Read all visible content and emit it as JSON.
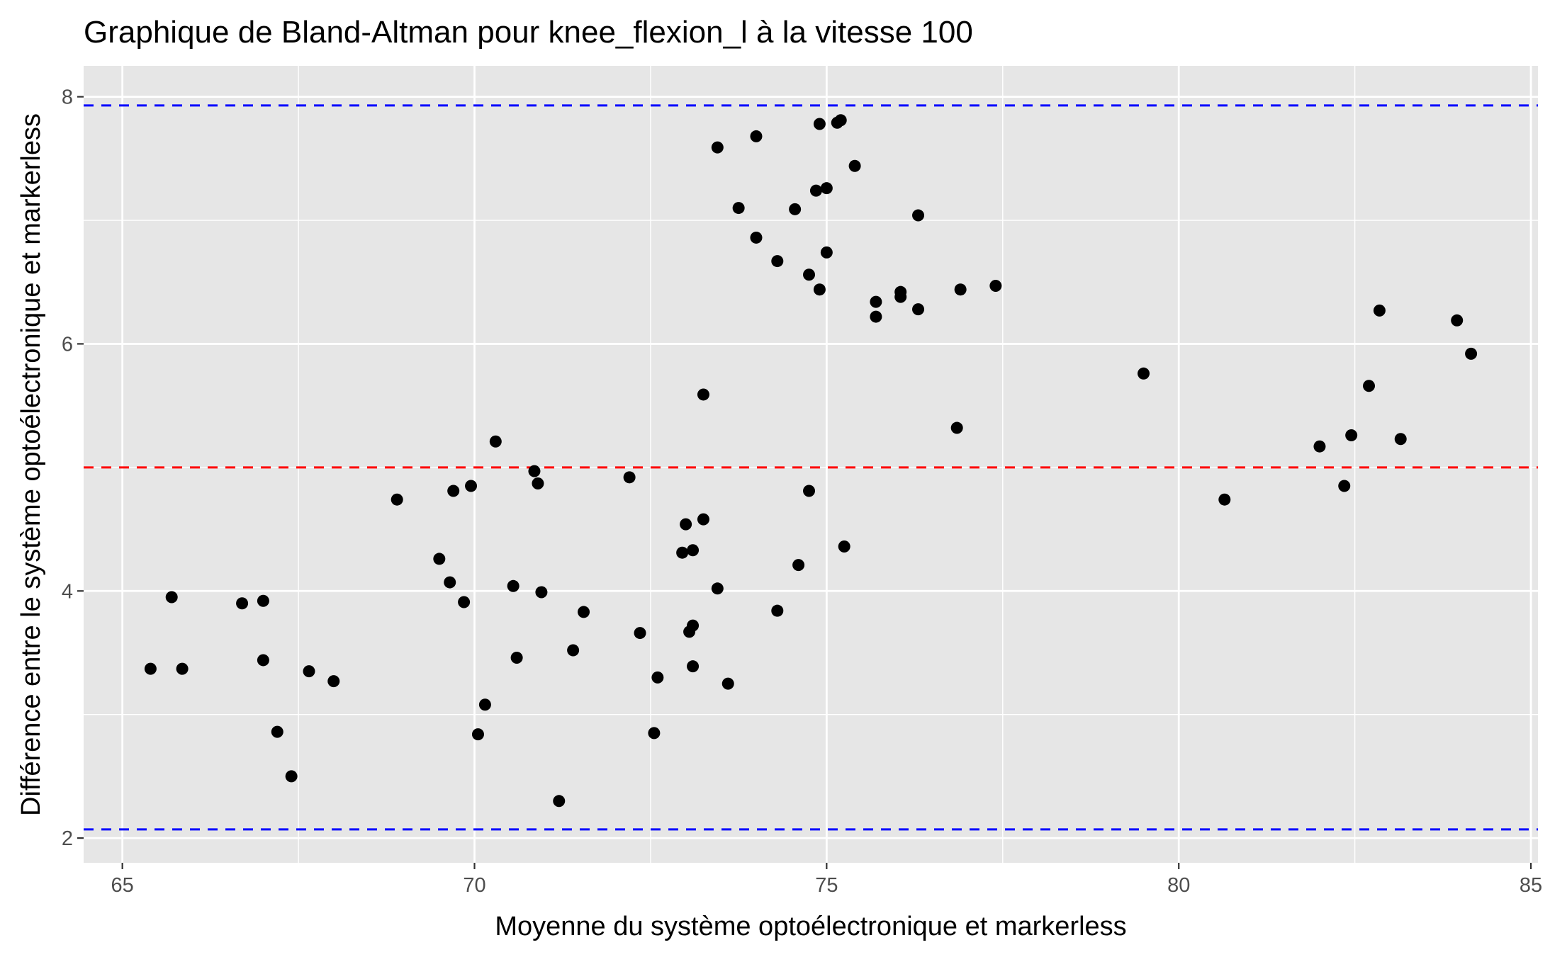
{
  "chart_data": {
    "type": "scatter",
    "title": "Graphique de Bland-Altman pour knee_flexion_l à la vitesse 100",
    "xlabel": "Moyenne du système optoélectronique et markerless",
    "ylabel": "Différence entre le système optoélectronique et markerless",
    "xlim": [
      64.45,
      85.1
    ],
    "ylim": [
      1.8,
      8.25
    ],
    "xticks": [
      65,
      70,
      75,
      80,
      85
    ],
    "yticks": [
      2,
      4,
      6,
      8
    ],
    "grid": true,
    "reference_lines": [
      {
        "kind": "mean-difference",
        "y": 5.0,
        "color": "#ff0000",
        "style": "dashed"
      },
      {
        "kind": "upper-limit",
        "y": 7.93,
        "color": "#0000ff",
        "style": "dashed"
      },
      {
        "kind": "lower-limit",
        "y": 2.07,
        "color": "#0000ff",
        "style": "dashed"
      }
    ],
    "point_color": "#000000",
    "points": [
      {
        "x": 65.4,
        "y": 3.37
      },
      {
        "x": 65.7,
        "y": 3.95
      },
      {
        "x": 65.85,
        "y": 3.37
      },
      {
        "x": 66.7,
        "y": 3.9
      },
      {
        "x": 67.0,
        "y": 3.92
      },
      {
        "x": 67.0,
        "y": 3.44
      },
      {
        "x": 67.2,
        "y": 2.86
      },
      {
        "x": 67.4,
        "y": 2.5
      },
      {
        "x": 67.65,
        "y": 3.35
      },
      {
        "x": 68.0,
        "y": 3.27
      },
      {
        "x": 68.9,
        "y": 4.74
      },
      {
        "x": 69.5,
        "y": 4.26
      },
      {
        "x": 69.65,
        "y": 4.07
      },
      {
        "x": 69.7,
        "y": 4.81
      },
      {
        "x": 69.85,
        "y": 3.91
      },
      {
        "x": 69.95,
        "y": 4.85
      },
      {
        "x": 70.05,
        "y": 2.84
      },
      {
        "x": 70.15,
        "y": 3.08
      },
      {
        "x": 70.3,
        "y": 5.21
      },
      {
        "x": 70.55,
        "y": 4.04
      },
      {
        "x": 70.6,
        "y": 3.46
      },
      {
        "x": 70.85,
        "y": 4.97
      },
      {
        "x": 70.9,
        "y": 4.87
      },
      {
        "x": 70.95,
        "y": 3.99
      },
      {
        "x": 71.2,
        "y": 2.3
      },
      {
        "x": 71.4,
        "y": 3.52
      },
      {
        "x": 71.55,
        "y": 3.83
      },
      {
        "x": 72.2,
        "y": 4.92
      },
      {
        "x": 72.35,
        "y": 3.66
      },
      {
        "x": 72.55,
        "y": 2.85
      },
      {
        "x": 72.6,
        "y": 3.3
      },
      {
        "x": 72.95,
        "y": 4.31
      },
      {
        "x": 73.0,
        "y": 4.54
      },
      {
        "x": 73.05,
        "y": 3.67
      },
      {
        "x": 73.1,
        "y": 3.39
      },
      {
        "x": 73.1,
        "y": 3.72
      },
      {
        "x": 73.1,
        "y": 4.33
      },
      {
        "x": 73.25,
        "y": 4.58
      },
      {
        "x": 73.25,
        "y": 5.59
      },
      {
        "x": 73.45,
        "y": 4.02
      },
      {
        "x": 73.45,
        "y": 7.59
      },
      {
        "x": 73.6,
        "y": 3.25
      },
      {
        "x": 73.75,
        "y": 7.1
      },
      {
        "x": 74.0,
        "y": 7.68
      },
      {
        "x": 74.0,
        "y": 6.86
      },
      {
        "x": 74.3,
        "y": 6.67
      },
      {
        "x": 74.3,
        "y": 3.84
      },
      {
        "x": 74.55,
        "y": 7.09
      },
      {
        "x": 74.6,
        "y": 4.21
      },
      {
        "x": 74.75,
        "y": 6.56
      },
      {
        "x": 74.75,
        "y": 4.81
      },
      {
        "x": 74.85,
        "y": 7.24
      },
      {
        "x": 74.9,
        "y": 6.44
      },
      {
        "x": 74.9,
        "y": 7.78
      },
      {
        "x": 75.0,
        "y": 6.74
      },
      {
        "x": 75.0,
        "y": 7.26
      },
      {
        "x": 75.15,
        "y": 7.79
      },
      {
        "x": 75.2,
        "y": 7.81
      },
      {
        "x": 75.25,
        "y": 4.36
      },
      {
        "x": 75.4,
        "y": 7.44
      },
      {
        "x": 75.7,
        "y": 6.34
      },
      {
        "x": 75.7,
        "y": 6.22
      },
      {
        "x": 76.05,
        "y": 6.38
      },
      {
        "x": 76.05,
        "y": 6.42
      },
      {
        "x": 76.3,
        "y": 7.04
      },
      {
        "x": 76.3,
        "y": 6.28
      },
      {
        "x": 76.85,
        "y": 5.32
      },
      {
        "x": 76.9,
        "y": 6.44
      },
      {
        "x": 77.4,
        "y": 6.47
      },
      {
        "x": 79.5,
        "y": 5.76
      },
      {
        "x": 80.65,
        "y": 4.74
      },
      {
        "x": 82.0,
        "y": 5.17
      },
      {
        "x": 82.35,
        "y": 4.85
      },
      {
        "x": 82.45,
        "y": 5.26
      },
      {
        "x": 82.7,
        "y": 5.66
      },
      {
        "x": 82.85,
        "y": 6.27
      },
      {
        "x": 83.15,
        "y": 5.23
      },
      {
        "x": 83.95,
        "y": 6.19
      },
      {
        "x": 84.15,
        "y": 5.92
      }
    ]
  }
}
